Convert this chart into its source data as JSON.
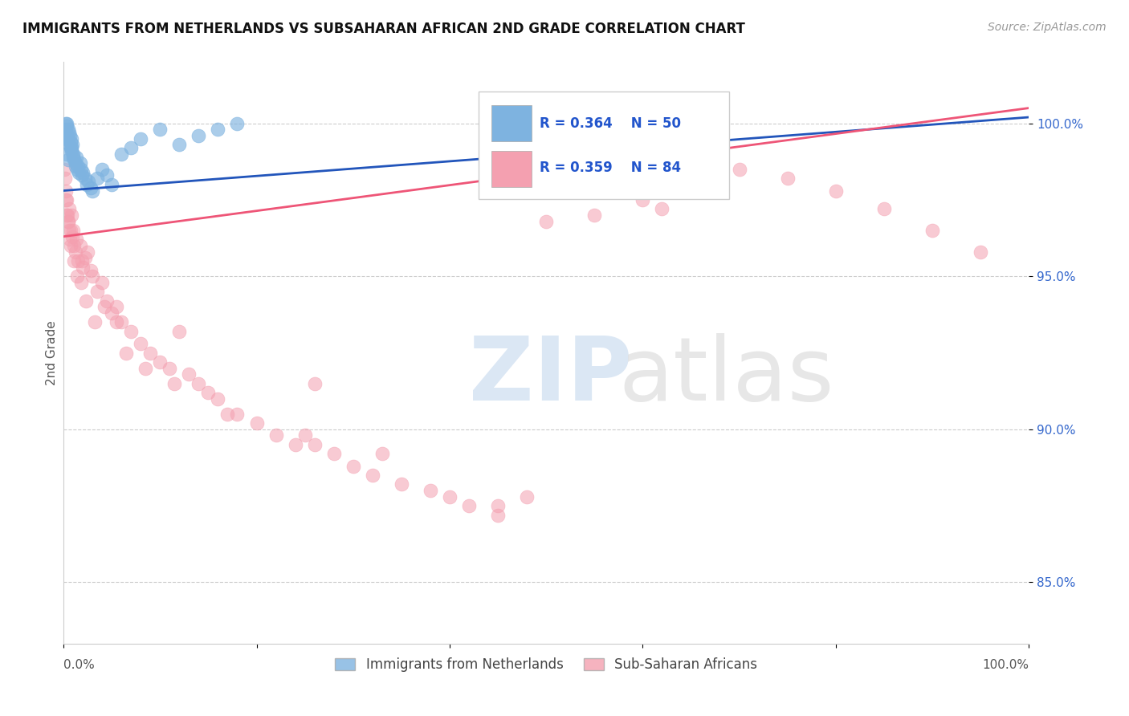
{
  "title": "IMMIGRANTS FROM NETHERLANDS VS SUBSAHARAN AFRICAN 2ND GRADE CORRELATION CHART",
  "source_text": "Source: ZipAtlas.com",
  "ylabel": "2nd Grade",
  "xlim": [
    0.0,
    100.0
  ],
  "ylim": [
    83.0,
    102.0
  ],
  "yticks": [
    85.0,
    90.0,
    95.0,
    100.0
  ],
  "ytick_labels": [
    "85.0%",
    "90.0%",
    "95.0%",
    "100.0%"
  ],
  "legend_r1": "R = 0.364",
  "legend_n1": "N = 50",
  "legend_r2": "R = 0.359",
  "legend_n2": "N = 84",
  "legend_label1": "Immigrants from Netherlands",
  "legend_label2": "Sub-Saharan Africans",
  "blue_color": "#7EB3E0",
  "pink_color": "#F4A0B0",
  "trend_blue": "#2255BB",
  "trend_pink": "#EE5577",
  "blue_trend_x0": 0.0,
  "blue_trend_y0": 97.8,
  "blue_trend_x1": 100.0,
  "blue_trend_y1": 100.2,
  "pink_trend_x0": 0.0,
  "pink_trend_y0": 96.3,
  "pink_trend_x1": 100.0,
  "pink_trend_y1": 100.5,
  "blue_scatter_x": [
    0.1,
    0.15,
    0.2,
    0.25,
    0.3,
    0.35,
    0.4,
    0.45,
    0.5,
    0.55,
    0.6,
    0.65,
    0.7,
    0.75,
    0.8,
    0.85,
    0.9,
    0.95,
    1.0,
    1.1,
    1.2,
    1.3,
    1.4,
    1.5,
    1.6,
    1.7,
    1.8,
    1.9,
    2.0,
    2.2,
    2.4,
    2.6,
    2.8,
    3.0,
    3.5,
    4.0,
    4.5,
    5.0,
    6.0,
    7.0,
    8.0,
    10.0,
    12.0,
    14.0,
    16.0,
    18.0,
    0.3,
    0.5,
    0.8,
    1.2
  ],
  "blue_scatter_y": [
    99.5,
    99.8,
    100.0,
    99.7,
    99.9,
    100.0,
    99.6,
    99.8,
    99.5,
    99.7,
    99.3,
    99.6,
    99.4,
    99.2,
    99.5,
    99.1,
    99.3,
    98.9,
    99.0,
    98.8,
    98.7,
    98.9,
    98.5,
    98.6,
    98.4,
    98.7,
    98.5,
    98.3,
    98.4,
    98.2,
    98.0,
    98.1,
    97.9,
    97.8,
    98.2,
    98.5,
    98.3,
    98.0,
    99.0,
    99.2,
    99.5,
    99.8,
    99.3,
    99.6,
    99.8,
    100.0,
    99.0,
    98.8,
    99.2,
    98.6
  ],
  "pink_scatter_x": [
    0.1,
    0.2,
    0.3,
    0.4,
    0.5,
    0.6,
    0.7,
    0.8,
    0.9,
    1.0,
    1.1,
    1.2,
    1.3,
    1.5,
    1.7,
    1.9,
    2.0,
    2.2,
    2.5,
    2.8,
    3.0,
    3.5,
    4.0,
    4.5,
    5.0,
    5.5,
    6.0,
    7.0,
    8.0,
    9.0,
    10.0,
    11.0,
    12.0,
    13.0,
    14.0,
    15.0,
    16.0,
    18.0,
    20.0,
    22.0,
    24.0,
    26.0,
    28.0,
    30.0,
    32.0,
    35.0,
    38.0,
    40.0,
    42.0,
    45.0,
    50.0,
    55.0,
    60.0,
    65.0,
    70.0,
    75.0,
    80.0,
    85.0,
    90.0,
    95.0,
    0.15,
    0.35,
    0.55,
    0.75,
    1.1,
    1.4,
    1.8,
    2.3,
    3.2,
    4.2,
    6.5,
    8.5,
    11.5,
    17.0,
    25.0,
    33.0,
    48.0,
    62.0,
    0.25,
    0.45,
    0.65,
    5.5,
    26.0,
    45.0
  ],
  "pink_scatter_y": [
    98.5,
    97.8,
    97.5,
    97.0,
    96.8,
    97.2,
    96.5,
    97.0,
    96.3,
    96.5,
    96.0,
    95.8,
    96.2,
    95.5,
    96.0,
    95.5,
    95.3,
    95.6,
    95.8,
    95.2,
    95.0,
    94.5,
    94.8,
    94.2,
    93.8,
    94.0,
    93.5,
    93.2,
    92.8,
    92.5,
    92.2,
    92.0,
    93.2,
    91.8,
    91.5,
    91.2,
    91.0,
    90.5,
    90.2,
    89.8,
    89.5,
    91.5,
    89.2,
    88.8,
    88.5,
    88.2,
    88.0,
    87.8,
    87.5,
    87.2,
    96.8,
    97.0,
    97.5,
    99.8,
    98.5,
    98.2,
    97.8,
    97.2,
    96.5,
    95.8,
    98.2,
    97.0,
    96.5,
    96.0,
    95.5,
    95.0,
    94.8,
    94.2,
    93.5,
    94.0,
    92.5,
    92.0,
    91.5,
    90.5,
    89.8,
    89.2,
    87.8,
    97.2,
    97.5,
    96.8,
    96.2,
    93.5,
    89.5,
    87.5
  ]
}
